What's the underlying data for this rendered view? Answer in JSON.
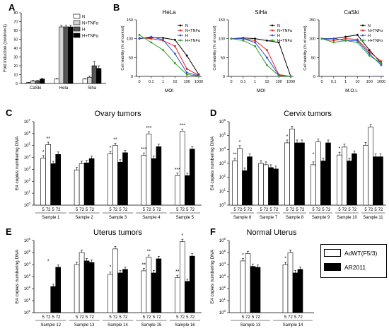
{
  "panels": {
    "A": {
      "label": "A"
    },
    "B": {
      "label": "B"
    },
    "C": {
      "label": "C",
      "title": "Ovary tumors"
    },
    "D": {
      "label": "D",
      "title": "Cervix tumors"
    },
    "E": {
      "label": "E",
      "title": "Uterus tumors"
    },
    "F": {
      "label": "F",
      "title": "Normal Uterus"
    }
  },
  "legend_F": {
    "open": "AdWT(F5/3)",
    "filled": "AR2011"
  },
  "colors": {
    "white_bar": "#ffffff",
    "black_bar": "#000000",
    "light_grey": "#d4d4d4",
    "dark_grey": "#555555",
    "N": "#000000",
    "N+TNFa": "#e02020",
    "H": "#2a4fd6",
    "H+TNFa": "#2aa02a"
  },
  "chart_data": [
    {
      "id": "A",
      "type": "bar",
      "title": "",
      "ylabel": "Fold induction (control=1)",
      "ylim": [
        0,
        80
      ],
      "yticks": [
        0,
        10,
        20,
        30,
        40,
        50,
        60,
        70,
        80
      ],
      "categories": [
        "CaSki",
        "Hela",
        "Siha"
      ],
      "series": [
        {
          "name": "N",
          "values": [
            1,
            5,
            5
          ]
        },
        {
          "name": "N+TNFα",
          "values": [
            3,
            64,
            7
          ]
        },
        {
          "name": "H",
          "values": [
            3,
            64,
            20
          ]
        },
        {
          "name": "H+TNFα",
          "values": [
            5,
            64,
            17
          ]
        }
      ],
      "errors": [
        [
          0.3,
          0.5,
          0.5
        ],
        [
          0.5,
          2,
          1.5
        ],
        [
          0.5,
          2,
          5
        ],
        [
          1,
          2,
          3
        ]
      ]
    },
    {
      "id": "B-HeLa",
      "type": "line",
      "title": "HeLa",
      "xlabel": "MOI",
      "ylabel": "Cell viability (% of control)",
      "ylim": [
        0,
        150
      ],
      "yticks": [
        0,
        50,
        100,
        150
      ],
      "x": [
        "0",
        "0.1",
        "1",
        "10",
        "100",
        "1000"
      ],
      "series": [
        {
          "name": "N",
          "values": [
            100,
            103,
            102,
            97,
            55,
            5
          ]
        },
        {
          "name": "N+TNFα",
          "values": [
            102,
            100,
            95,
            80,
            20,
            3
          ]
        },
        {
          "name": "H",
          "values": [
            100,
            105,
            97,
            60,
            10,
            2
          ]
        },
        {
          "name": "H+TNFα",
          "values": [
            110,
            90,
            70,
            35,
            5,
            1
          ]
        }
      ]
    },
    {
      "id": "B-SiHa",
      "type": "line",
      "title": "SiHa",
      "xlabel": "MOI",
      "ylabel": "Cell viability (% of control)",
      "ylim": [
        0,
        150
      ],
      "yticks": [
        0,
        50,
        100,
        150
      ],
      "x": [
        "0",
        "0.1",
        "1",
        "10",
        "100",
        "1000"
      ],
      "series": [
        {
          "name": "N",
          "values": [
            100,
            102,
            100,
            95,
            90,
            0
          ]
        },
        {
          "name": "N+TNFα",
          "values": [
            100,
            100,
            95,
            70,
            5,
            0
          ]
        },
        {
          "name": "H",
          "values": [
            100,
            100,
            90,
            50,
            3,
            0
          ]
        },
        {
          "name": "H+TNFα",
          "values": [
            100,
            95,
            80,
            30,
            2,
            0
          ]
        }
      ]
    },
    {
      "id": "B-CaSki",
      "type": "line",
      "title": "CaSki",
      "xlabel": "M.O.I.",
      "ylabel": "Cell viability (% of control)",
      "ylim": [
        0,
        150
      ],
      "yticks": [
        0,
        50,
        100,
        150
      ],
      "x": [
        "0",
        "0.1",
        "1",
        "10",
        "100",
        "1000"
      ],
      "series": [
        {
          "name": "N",
          "values": [
            100,
            100,
            105,
            110,
            70,
            35
          ]
        },
        {
          "name": "N+TNFα",
          "values": [
            100,
            95,
            100,
            98,
            65,
            40
          ]
        },
        {
          "name": "H",
          "values": [
            100,
            100,
            95,
            95,
            60,
            30
          ]
        },
        {
          "name": "H+TNFα",
          "values": [
            100,
            90,
            95,
            90,
            55,
            35
          ]
        }
      ]
    },
    {
      "id": "C",
      "type": "bar",
      "title": "Ovary tumors",
      "ylabel": "E4 copies numbering DNA",
      "yscale": "log",
      "ylim": [
        1,
        10000000
      ],
      "ytick_exponents": [
        0,
        1,
        2,
        3,
        4,
        5,
        6,
        7
      ],
      "timepoint_labels": [
        "5",
        "72",
        "5",
        "72"
      ],
      "groups": [
        "Sample 1",
        "Sample 2",
        "Sample 3",
        "Sample 4",
        "Sample 5"
      ],
      "series": [
        {
          "name": "AdWT(F5/3)",
          "values": [
            [
              9000,
              120000
            ],
            [
              900,
              3000
            ],
            [
              20000,
              100000
            ],
            [
              15000,
              900000
            ],
            [
              300,
              1500000
            ]
          ]
        },
        {
          "name": "AR2011",
          "values": [
            [
              3000,
              18000
            ],
            [
              3500,
              8000
            ],
            [
              4000,
              25000
            ],
            [
              8000,
              80000
            ],
            [
              300,
              50000
            ]
          ]
        }
      ],
      "annotations": {
        "Sample 1": [
          "*",
          "**"
        ],
        "Sample 2": [
          "",
          ""
        ],
        "Sample 3": [
          "*",
          "**"
        ],
        "Sample 4": [
          "***",
          "***"
        ],
        "Sample 5": [
          "***",
          "***"
        ]
      }
    },
    {
      "id": "D",
      "type": "bar",
      "title": "Cervix tumors",
      "ylabel": "E4 copies numbering DNA",
      "yscale": "log",
      "ylim": [
        1,
        1000000
      ],
      "ytick_exponents": [
        0,
        1,
        2,
        3,
        4,
        5,
        6
      ],
      "timepoint_labels": [
        "5",
        "72",
        "5",
        "72"
      ],
      "groups": [
        "Sample 6",
        "Sample 7",
        "Sample 8",
        "Sample 9",
        "Sample 10",
        "Sample 11"
      ],
      "series": [
        {
          "name": "AdWT(F5/3)",
          "values": [
            [
              1500,
              12000
            ],
            [
              1000,
              800
            ],
            [
              30000,
              300000
            ],
            [
              800,
              35000
            ],
            [
              4000,
              15000
            ],
            [
              20000,
              400000
            ]
          ]
        },
        {
          "name": "AR2011",
          "values": [
            [
              300,
              3000
            ],
            [
              500,
              400
            ],
            [
              30000,
              30000
            ],
            [
              1500,
              30000
            ],
            [
              1500,
              5000
            ],
            [
              3000,
              3000
            ]
          ]
        }
      ],
      "annotations": {
        "Sample 6": [
          "**",
          "*"
        ],
        "Sample 7": [
          "",
          ""
        ],
        "Sample 8": [
          "*",
          ""
        ],
        "Sample 9": [
          "*",
          ""
        ],
        "Sample 10": [
          "*",
          ""
        ],
        "Sample 11": [
          "",
          ""
        ]
      }
    },
    {
      "id": "E",
      "type": "bar",
      "title": "Uterus tumors",
      "ylabel": "E4 copies numbering DNA",
      "yscale": "log",
      "ylim": [
        1,
        1000000
      ],
      "ytick_exponents": [
        0,
        1,
        2,
        3,
        4,
        5,
        6
      ],
      "timepoint_labels": [
        "5",
        "72",
        "5",
        "72"
      ],
      "groups": [
        "Sample 12",
        "Sample 13",
        "Sample 14",
        "Sample 15",
        "Sample 16"
      ],
      "series": [
        {
          "name": "AdWT(F5/3)",
          "values": [
            [
              null,
              null
            ],
            [
              10000,
              100000
            ],
            [
              1500,
              200000
            ],
            [
              3000,
              40000
            ],
            [
              800,
              800000
            ]
          ]
        },
        {
          "name": "AR2011",
          "values": [
            [
              150,
              6000
            ],
            [
              20000,
              15000
            ],
            [
              2000,
              4000
            ],
            [
              2000,
              30000
            ],
            [
              400,
              50000
            ]
          ]
        }
      ],
      "annotations": {
        "Sample 12": [
          "",
          "*"
        ],
        "Sample 13": [
          "",
          ""
        ],
        "Sample 14": [
          "*",
          ""
        ],
        "Sample 15": [
          "**",
          "**"
        ],
        "Sample 16": [
          "**",
          "*"
        ]
      }
    },
    {
      "id": "F",
      "type": "bar",
      "title": "Normal Uterus",
      "ylabel": "E4 copies numbering DNA",
      "yscale": "log",
      "ylim": [
        1,
        1000000
      ],
      "ytick_exponents": [
        0,
        1,
        2,
        3,
        4,
        5,
        6
      ],
      "timepoint_labels": [
        "5",
        "72",
        "5",
        "72"
      ],
      "groups": [
        "Sample 13",
        "Sample 14"
      ],
      "series": [
        {
          "name": "AdWT(F5/3)",
          "values": [
            [
              20000,
              80000
            ],
            [
              10000,
              100000
            ]
          ]
        },
        {
          "name": "AR2011",
          "values": [
            [
              7000,
              6000
            ],
            [
              2000,
              4000
            ]
          ]
        }
      ],
      "annotations": {
        "Sample 13": [
          "*",
          ""
        ],
        "Sample 14": [
          "*",
          ""
        ]
      }
    }
  ]
}
